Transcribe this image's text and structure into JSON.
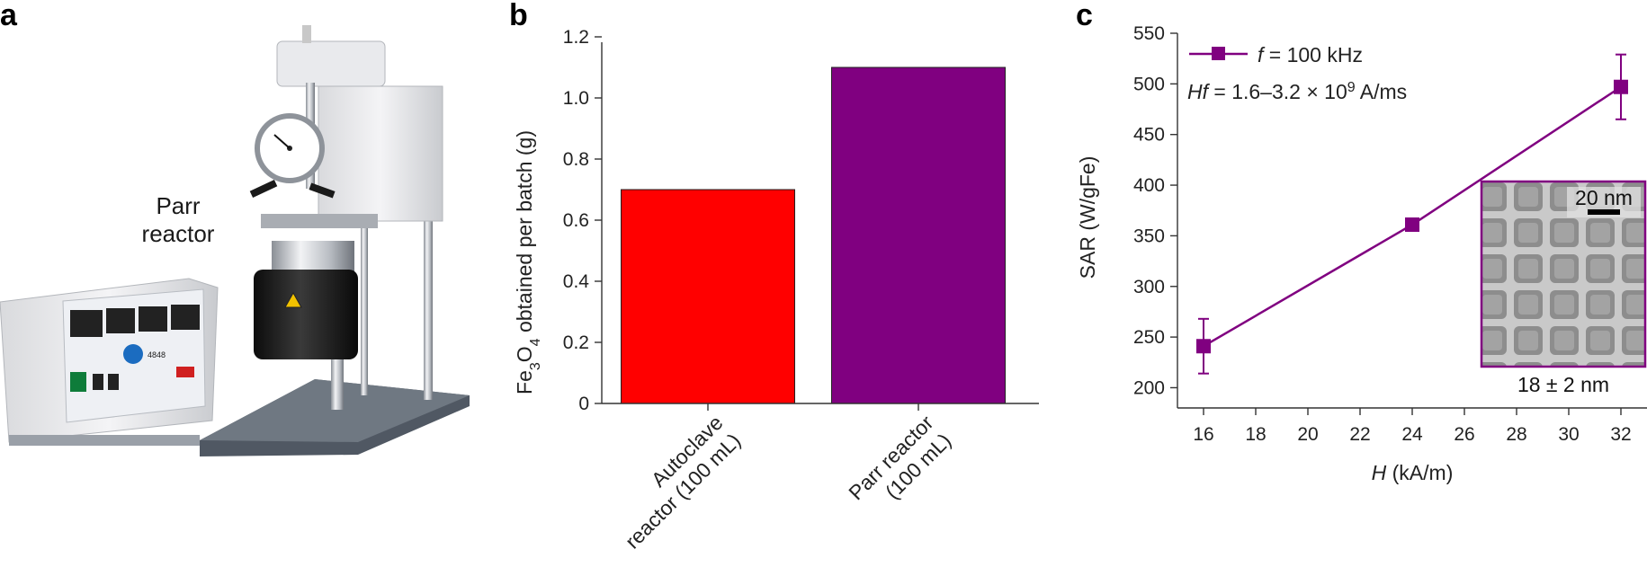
{
  "panels": {
    "a": {
      "letter": "a",
      "label_line1": "Parr",
      "label_line2": "reactor",
      "controller_model": "4848"
    },
    "b": {
      "letter": "b"
    },
    "c": {
      "letter": "c"
    }
  },
  "colors": {
    "autoclave_bar": "#ff0000",
    "parr_bar": "#800080",
    "sar_series": "#800080",
    "inset_frame": "#800080"
  },
  "chart_data": [
    {
      "id": "b",
      "type": "bar",
      "categories": [
        "Autoclave reactor (100 mL)",
        "Parr reactor (100 mL)"
      ],
      "category_lines": [
        [
          "Autoclave",
          "reactor (100 mL)"
        ],
        [
          "Parr reactor",
          "(100 mL)"
        ]
      ],
      "values": [
        0.7,
        1.1
      ],
      "bar_colors": [
        "#ff0000",
        "#800080"
      ],
      "ylabel_main": "Fe",
      "ylabel_sub1": "3",
      "ylabel_mid": "O",
      "ylabel_sub2": "4",
      "ylabel_rest": " obtained per batch (g)",
      "xlabel": "",
      "ylim": [
        0,
        1.2
      ],
      "yticks": [
        "0",
        "0.2",
        "0.4",
        "0.6",
        "0.8",
        "1.0",
        "1.2"
      ],
      "grid": false
    },
    {
      "id": "c",
      "type": "line",
      "x": [
        16,
        24,
        32
      ],
      "y": [
        241,
        361,
        497
      ],
      "y_err": [
        [
          27,
          27
        ],
        [
          0,
          0
        ],
        [
          32,
          32
        ]
      ],
      "xlim": [
        15,
        33
      ],
      "ylim": [
        180,
        550
      ],
      "xticks": [
        "16",
        "18",
        "20",
        "22",
        "24",
        "26",
        "28",
        "30",
        "32"
      ],
      "yticks": [
        "200",
        "250",
        "300",
        "350",
        "400",
        "450",
        "500",
        "550"
      ],
      "xlabel_var": "H",
      "xlabel_unit": " (kA/m)",
      "ylabel": "SAR (W/gFe)",
      "legend": {
        "position": "top-left",
        "var": "f",
        "text": " = 100 kHz"
      },
      "annotation": {
        "var": "Hf",
        "text_before": " = 1.6–3.2 × 10",
        "sup": "9",
        "text_after": " A/ms"
      },
      "inset": {
        "scale_bar": "20 nm",
        "caption": "18 ± 2 nm"
      },
      "grid": false
    }
  ]
}
